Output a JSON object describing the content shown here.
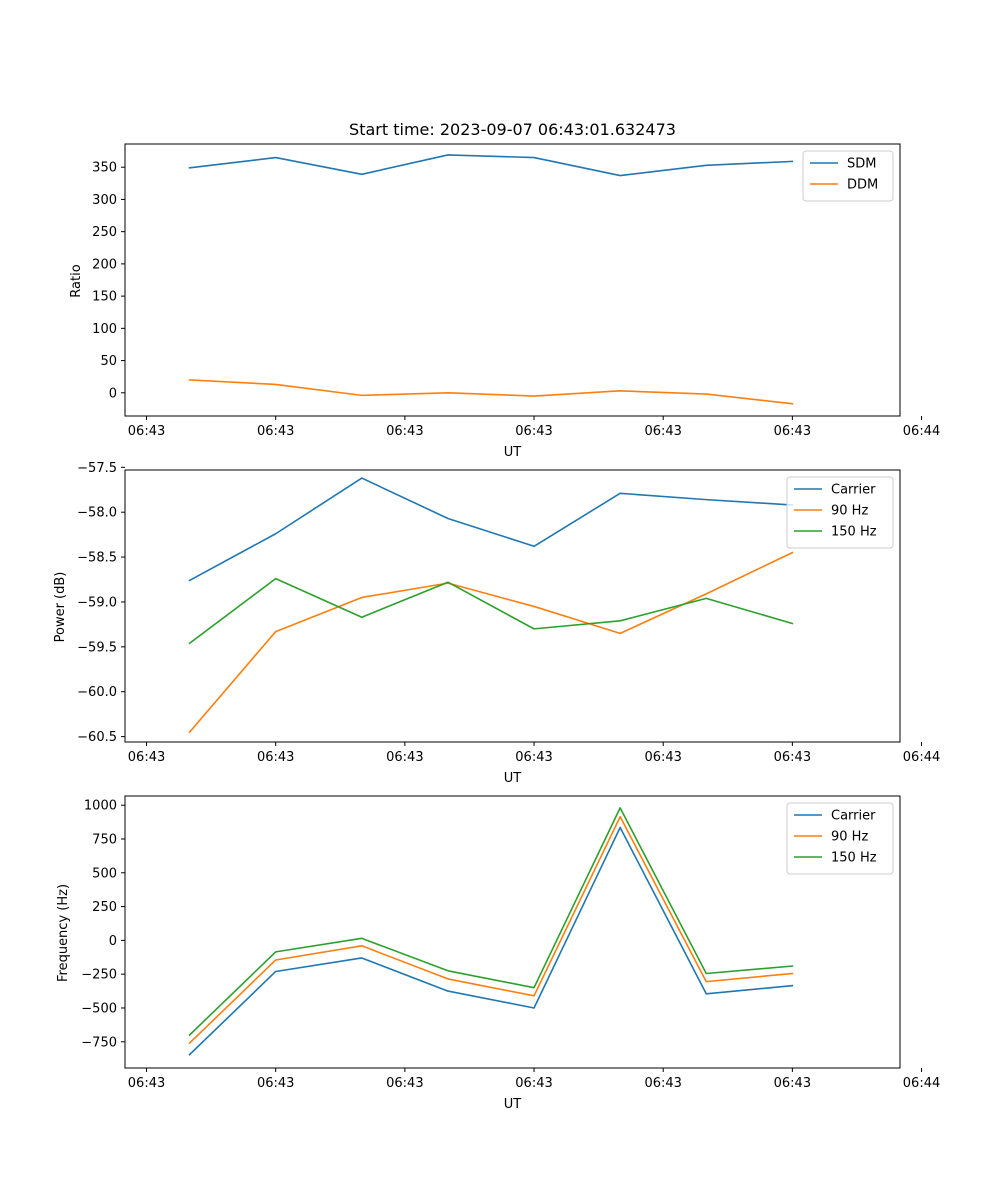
{
  "chart_data": [
    {
      "type": "line",
      "title": "Start time: 2023-09-07 06:43:01.632473",
      "xlabel": "UT",
      "ylabel": "Ratio",
      "x": [
        1,
        2,
        3,
        4,
        5,
        6,
        7,
        8
      ],
      "xlim": [
        0.25,
        9.25
      ],
      "xticks": [
        0.5,
        2,
        3.5,
        5,
        6.5,
        8,
        9.5
      ],
      "xticklabels": [
        "06:43",
        "06:43",
        "06:43",
        "06:43",
        "06:43",
        "06:43",
        "06:44"
      ],
      "ylim": [
        -36,
        386
      ],
      "yticks": [
        0,
        50,
        100,
        150,
        200,
        250,
        300,
        350
      ],
      "yticklabels": [
        "0",
        "50",
        "100",
        "150",
        "200",
        "250",
        "300",
        "350"
      ],
      "legend_position": "top-right",
      "series": [
        {
          "name": "SDM",
          "color": "#1f77b4",
          "values": [
            349,
            365,
            339,
            369,
            365,
            337,
            353,
            359
          ]
        },
        {
          "name": "DDM",
          "color": "#ff7f0e",
          "values": [
            20,
            13,
            -4,
            0,
            -5,
            3,
            -2,
            -17
          ]
        }
      ]
    },
    {
      "type": "line",
      "title": "",
      "xlabel": "UT",
      "ylabel": "Power (dB)",
      "x": [
        1,
        2,
        3,
        4,
        5,
        6,
        7,
        8
      ],
      "xlim": [
        0.25,
        9.25
      ],
      "xticks": [
        0.5,
        2,
        3.5,
        5,
        6.5,
        8,
        9.5
      ],
      "xticklabels": [
        "06:43",
        "06:43",
        "06:43",
        "06:43",
        "06:43",
        "06:43",
        "06:44"
      ],
      "ylim": [
        -60.56,
        -57.53
      ],
      "yticks": [
        -60.5,
        -60.0,
        -59.5,
        -59.0,
        -58.5,
        -58.0,
        -57.5
      ],
      "yticklabels": [
        "−60.5",
        "−60.0",
        "−59.5",
        "−59.0",
        "−58.5",
        "−58.0",
        "−57.5"
      ],
      "legend_position": "top-right",
      "series": [
        {
          "name": "Carrier",
          "color": "#1f77b4",
          "values": [
            -58.76,
            -58.24,
            -57.62,
            -58.07,
            -58.38,
            -57.79,
            -57.86,
            -57.92
          ]
        },
        {
          "name": "90 Hz",
          "color": "#ff7f0e",
          "values": [
            -60.45,
            -59.33,
            -58.95,
            -58.79,
            -59.05,
            -59.35,
            -58.91,
            -58.45
          ]
        },
        {
          "name": "150 Hz",
          "color": "#2ca02c",
          "values": [
            -59.46,
            -58.74,
            -59.17,
            -58.78,
            -59.3,
            -59.21,
            -58.96,
            -59.24
          ]
        }
      ]
    },
    {
      "type": "line",
      "title": "",
      "xlabel": "UT",
      "ylabel": "Frequency (Hz)",
      "x": [
        1,
        2,
        3,
        4,
        5,
        6,
        7,
        8
      ],
      "xlim": [
        0.25,
        9.25
      ],
      "xticks": [
        0.5,
        2,
        3.5,
        5,
        6.5,
        8,
        9.5
      ],
      "xticklabels": [
        "06:43",
        "06:43",
        "06:43",
        "06:43",
        "06:43",
        "06:43",
        "06:44"
      ],
      "ylim": [
        -944,
        1068
      ],
      "yticks": [
        -750,
        -500,
        -250,
        0,
        250,
        500,
        750,
        1000
      ],
      "yticklabels": [
        "−750",
        "−500",
        "−250",
        "0",
        "250",
        "500",
        "750",
        "1000"
      ],
      "legend_position": "top-right",
      "series": [
        {
          "name": "Carrier",
          "color": "#1f77b4",
          "values": [
            -845,
            -230,
            -130,
            -375,
            -500,
            835,
            -395,
            -335
          ]
        },
        {
          "name": "90 Hz",
          "color": "#ff7f0e",
          "values": [
            -760,
            -145,
            -40,
            -285,
            -410,
            915,
            -305,
            -245
          ]
        },
        {
          "name": "150 Hz",
          "color": "#2ca02c",
          "values": [
            -700,
            -85,
            15,
            -225,
            -350,
            980,
            -245,
            -190
          ]
        }
      ]
    }
  ]
}
